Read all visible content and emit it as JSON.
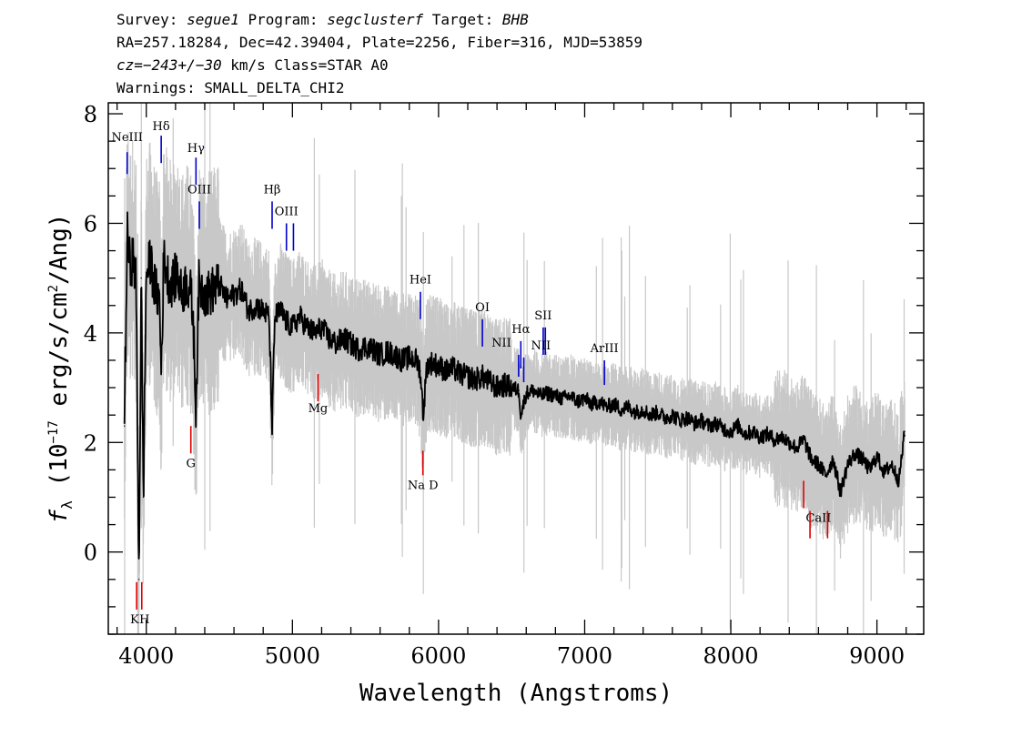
{
  "header": {
    "line1": {
      "survey_label": "Survey: ",
      "survey": "segue1",
      "program_label": " Program: ",
      "program": "segclusterf",
      "target_label": " Target: ",
      "target": "BHB"
    },
    "line2": "RA=257.18284, Dec=42.39404, Plate=2256, Fiber=316, MJD=53859",
    "line3": {
      "cz_label": "cz=",
      "cz_value": "−243+/−30",
      "cz_units": " km/s Class=STAR A0"
    },
    "line4": "Warnings: SMALL_DELTA_CHI2"
  },
  "chart_data": {
    "type": "line",
    "xlabel": "Wavelength (Angstroms)",
    "ylabel": "f_λ (10^-17 erg/s/cm^2/Ang)",
    "ylabel_parts": {
      "f": "f",
      "lambda": "λ",
      "open": " (10",
      "exp1": "−17",
      "mid": " erg/s/cm",
      "exp2": "2",
      "close": "/Ang)"
    },
    "xlim": [
      3740,
      9320
    ],
    "ylim": [
      -1.5,
      8.2
    ],
    "xticks": [
      4000,
      5000,
      6000,
      7000,
      8000,
      9000
    ],
    "yticks": [
      0,
      2,
      4,
      6,
      8
    ],
    "x_minor_step": 200,
    "y_minor_step": 0.5,
    "data_range": [
      3850,
      9190
    ],
    "colors": {
      "spectrum": "#000000",
      "noise_band": "#c8c8c8",
      "emission_marker": "#0000cc",
      "absorption_marker": "#dd0000"
    },
    "series": [
      {
        "x": [
          3850,
          3870,
          3890,
          3910,
          3930,
          3950,
          3965,
          3980,
          4000,
          4030,
          4060,
          4090,
          4102,
          4120,
          4150,
          4180,
          4210,
          4240,
          4270,
          4300,
          4320,
          4340,
          4360,
          4380,
          4420,
          4460,
          4500,
          4550,
          4600,
          4650,
          4700,
          4750,
          4800,
          4840,
          4861,
          4880,
          4920,
          4960,
          5000,
          5050,
          5100,
          5150,
          5200,
          5250,
          5300,
          5350,
          5400,
          5450,
          5500,
          5550,
          5600,
          5650,
          5700,
          5750,
          5800,
          5850,
          5875,
          5895,
          5920,
          5950,
          6000,
          6050,
          6100,
          6150,
          6200,
          6250,
          6300,
          6350,
          6400,
          6450,
          6500,
          6550,
          6563,
          6600,
          6650,
          6700,
          6750,
          6800,
          6850,
          6900,
          6950,
          7000,
          7050,
          7100,
          7150,
          7200,
          7250,
          7300,
          7350,
          7400,
          7450,
          7500,
          7550,
          7600,
          7650,
          7700,
          7750,
          7800,
          7850,
          7900,
          7950,
          8000,
          8050,
          8100,
          8150,
          8200,
          8250,
          8300,
          8350,
          8400,
          8450,
          8500,
          8550,
          8600,
          8650,
          8700,
          8750,
          8800,
          8850,
          8900,
          8950,
          9000,
          9050,
          9100,
          9150,
          9190
        ],
        "values": [
          2.3,
          5.8,
          5.2,
          5.4,
          4.9,
          -0.5,
          5.0,
          1.0,
          5.1,
          5.3,
          4.8,
          4.6,
          3.3,
          5.4,
          5.0,
          4.9,
          5.1,
          4.7,
          4.9,
          4.8,
          4.3,
          2.6,
          4.9,
          4.8,
          4.7,
          4.8,
          4.9,
          4.6,
          4.7,
          4.8,
          4.4,
          4.5,
          4.4,
          4.3,
          2.3,
          4.3,
          4.4,
          4.2,
          4.1,
          4.3,
          4.1,
          4.0,
          4.1,
          3.9,
          3.8,
          3.9,
          3.8,
          3.7,
          3.75,
          3.7,
          3.6,
          3.65,
          3.6,
          3.5,
          3.55,
          3.5,
          3.3,
          2.5,
          3.4,
          3.45,
          3.4,
          3.3,
          3.35,
          3.25,
          3.2,
          3.15,
          3.2,
          3.1,
          3.0,
          3.05,
          3.0,
          2.95,
          2.5,
          2.9,
          2.95,
          2.85,
          2.9,
          2.85,
          2.8,
          2.85,
          2.75,
          2.8,
          2.7,
          2.75,
          2.65,
          2.7,
          2.6,
          2.65,
          2.55,
          2.6,
          2.5,
          2.55,
          2.45,
          2.5,
          2.4,
          2.45,
          2.35,
          2.4,
          2.3,
          2.35,
          2.25,
          2.2,
          2.3,
          2.15,
          2.2,
          2.1,
          2.15,
          2.05,
          2.1,
          2.0,
          1.9,
          2.05,
          1.7,
          1.6,
          1.4,
          1.7,
          1.1,
          1.6,
          1.8,
          1.7,
          1.5,
          1.75,
          1.45,
          1.6,
          1.3,
          2.2
        ]
      }
    ],
    "line_markers": [
      {
        "label": "NeIII",
        "x": 3869,
        "y1": 6.9,
        "y2": 7.3,
        "label_y": 7.5,
        "kind": "emission"
      },
      {
        "label": "Hδ",
        "x": 4102,
        "y1": 7.1,
        "y2": 7.6,
        "label_y": 7.7,
        "kind": "emission"
      },
      {
        "label": "Hγ",
        "x": 4340,
        "y1": 6.7,
        "y2": 7.2,
        "label_y": 7.3,
        "kind": "emission"
      },
      {
        "label": "OIII",
        "x": 4363,
        "y1": 5.9,
        "y2": 6.4,
        "label_y": 6.55,
        "kind": "emission"
      },
      {
        "label": "Hβ",
        "x": 4861,
        "y1": 5.9,
        "y2": 6.4,
        "label_y": 6.55,
        "kind": "emission"
      },
      {
        "label": "OIII",
        "x": 4959,
        "y1": 5.5,
        "y2": 6.0,
        "label_y": 6.15,
        "kind": "emission"
      },
      {
        "label": "",
        "x": 5007,
        "y1": 5.5,
        "y2": 6.0,
        "label_y": 0,
        "kind": "emission"
      },
      {
        "label": "HeI",
        "x": 5876,
        "y1": 4.25,
        "y2": 4.75,
        "label_y": 4.9,
        "kind": "emission"
      },
      {
        "label": "OI",
        "x": 6300,
        "y1": 3.75,
        "y2": 4.25,
        "label_y": 4.4,
        "kind": "emission"
      },
      {
        "label": "NII",
        "x": 6548,
        "y1": 3.2,
        "y2": 3.6,
        "label_y": 3.75,
        "label_x": 6430,
        "kind": "emission"
      },
      {
        "label": "Hα",
        "x": 6563,
        "y1": 3.35,
        "y2": 3.85,
        "label_y": 4.0,
        "kind": "emission"
      },
      {
        "label": "",
        "x": 6583,
        "y1": 3.1,
        "y2": 3.55,
        "label_y": 0,
        "kind": "emission"
      },
      {
        "label": "SII",
        "x": 6716,
        "y1": 3.6,
        "y2": 4.1,
        "label_y": 4.25,
        "kind": "emission"
      },
      {
        "label": "",
        "x": 6731,
        "y1": 3.6,
        "y2": 4.1,
        "label_y": 0,
        "kind": "emission"
      },
      {
        "label": "NII",
        "x": 6583,
        "y1": 0,
        "y2": 0,
        "label_y": 3.7,
        "label_x": 6700,
        "kind": "label-only"
      },
      {
        "label": "ArIII",
        "x": 7135,
        "y1": 3.05,
        "y2": 3.5,
        "label_y": 3.65,
        "kind": "emission"
      },
      {
        "label": "Mg",
        "x": 5175,
        "y1": 2.75,
        "y2": 3.25,
        "label_y": 2.55,
        "kind": "absorption"
      },
      {
        "label": "G",
        "x": 4305,
        "y1": 1.8,
        "y2": 2.3,
        "label_y": 1.55,
        "kind": "absorption"
      },
      {
        "label": "Na D",
        "x": 5893,
        "y1": 1.4,
        "y2": 1.85,
        "label_y": 1.15,
        "kind": "absorption"
      },
      {
        "label": "K",
        "x": 3934,
        "y1": -1.05,
        "y2": -0.55,
        "label_y": -1.3,
        "label_x": 3920,
        "kind": "absorption"
      },
      {
        "label": "H",
        "x": 3969,
        "y1": -1.05,
        "y2": -0.55,
        "label_y": -1.3,
        "label_x": 3988,
        "kind": "absorption"
      },
      {
        "label": "CaII",
        "x": 8498,
        "y1": 0.8,
        "y2": 1.3,
        "label_y": 0.55,
        "label_x": 8600,
        "kind": "absorption"
      },
      {
        "label": "",
        "x": 8542,
        "y1": 0.25,
        "y2": 0.75,
        "label_y": 0,
        "kind": "absorption"
      },
      {
        "label": "",
        "x": 8662,
        "y1": 0.25,
        "y2": 0.75,
        "label_y": 0,
        "kind": "absorption"
      }
    ]
  }
}
